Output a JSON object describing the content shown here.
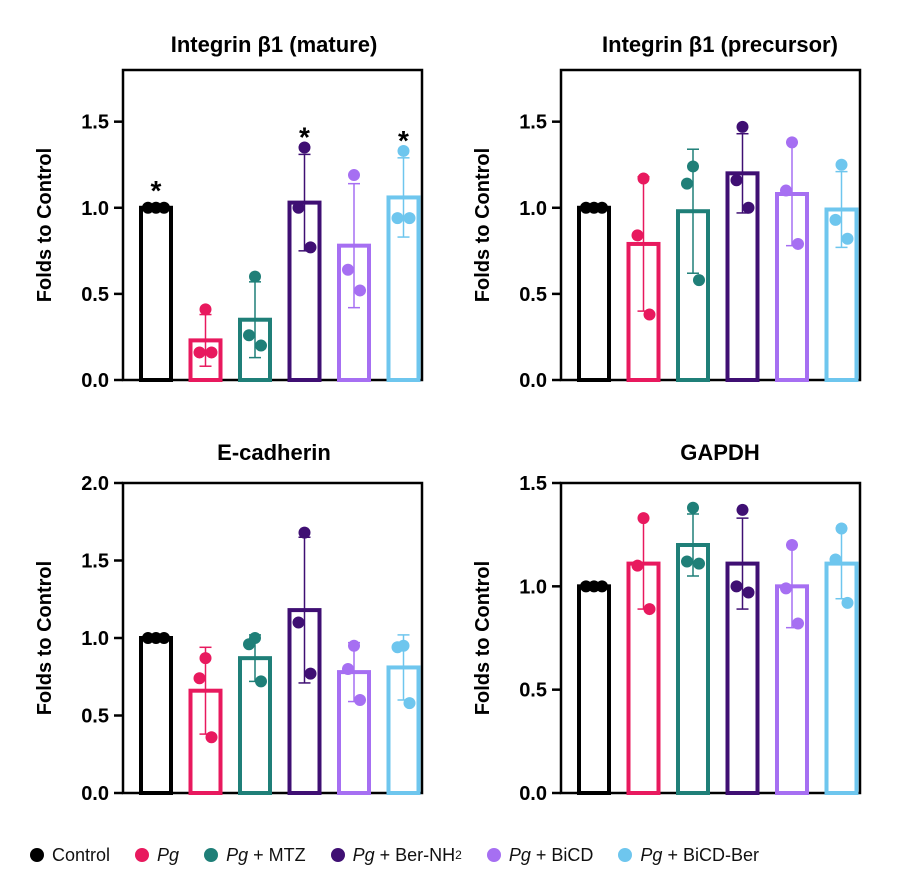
{
  "legend": [
    {
      "pg": "",
      "text": "Control",
      "sub": "",
      "color": "#000000"
    },
    {
      "pg": "Pg",
      "text": "",
      "sub": "",
      "color": "#e8195e"
    },
    {
      "pg": "Pg",
      "text": " + MTZ",
      "sub": "",
      "color": "#1f7f78"
    },
    {
      "pg": "Pg",
      "text": " + Ber-NH",
      "sub": "2",
      "color": "#3f0f73"
    },
    {
      "pg": "Pg",
      "text": " + BiCD",
      "sub": "",
      "color": "#a66ff2"
    },
    {
      "pg": "Pg",
      "text": " + BiCD-Ber",
      "sub": "",
      "color": "#6ec6ee"
    }
  ],
  "chart_data": [
    {
      "type": "bar",
      "title": "Integrin β1 (mature)",
      "ylabel": "Folds to Control",
      "ylim": [
        0,
        1.8
      ],
      "yticks": [
        0.0,
        0.5,
        1.0,
        1.5
      ],
      "ytick_labels": [
        "0.0",
        "0.5",
        "1.0",
        "1.5"
      ],
      "categories": [
        "Control",
        "Pg",
        "Pg + MTZ",
        "Pg + Ber-NH2",
        "Pg + BiCD",
        "Pg + BiCD-Ber"
      ],
      "values": [
        1.0,
        0.23,
        0.35,
        1.03,
        0.78,
        1.06
      ],
      "errors": [
        0.0,
        0.15,
        0.22,
        0.28,
        0.36,
        0.23
      ],
      "points": [
        [
          1.0,
          1.0,
          1.0
        ],
        [
          0.41,
          0.16,
          0.16
        ],
        [
          0.6,
          0.26,
          0.2
        ],
        [
          1.35,
          1.0,
          0.77
        ],
        [
          1.19,
          0.64,
          0.52
        ],
        [
          1.33,
          0.94,
          0.94
        ]
      ],
      "annotations": [
        "*",
        "",
        "",
        "*",
        "",
        "*"
      ]
    },
    {
      "type": "bar",
      "title": "Integrin β1 (precursor)",
      "ylabel": "Folds to Control",
      "ylim": [
        0,
        1.8
      ],
      "yticks": [
        0.0,
        0.5,
        1.0,
        1.5
      ],
      "ytick_labels": [
        "0.0",
        "0.5",
        "1.0",
        "1.5"
      ],
      "categories": [
        "Control",
        "Pg",
        "Pg + MTZ",
        "Pg + Ber-NH2",
        "Pg + BiCD",
        "Pg + BiCD-Ber"
      ],
      "values": [
        1.0,
        0.79,
        0.98,
        1.2,
        1.08,
        0.99
      ],
      "errors": [
        0.0,
        0.39,
        0.36,
        0.23,
        0.3,
        0.22
      ],
      "points": [
        [
          1.0,
          1.0,
          1.0
        ],
        [
          1.17,
          0.84,
          0.38
        ],
        [
          1.24,
          1.14,
          0.58
        ],
        [
          1.47,
          1.16,
          1.0
        ],
        [
          1.38,
          1.1,
          0.79
        ],
        [
          1.25,
          0.93,
          0.82
        ]
      ],
      "annotations": [
        "",
        "",
        "",
        "",
        "",
        ""
      ]
    },
    {
      "type": "bar",
      "title": "E-cadherin",
      "ylabel": "Folds to Control",
      "ylim": [
        0,
        2.0
      ],
      "yticks": [
        0.0,
        0.5,
        1.0,
        1.5,
        2.0
      ],
      "ytick_labels": [
        "0.0",
        "0.5",
        "1.0",
        "1.5",
        "2.0"
      ],
      "categories": [
        "Control",
        "Pg",
        "Pg + MTZ",
        "Pg + Ber-NH2",
        "Pg + BiCD",
        "Pg + BiCD-Ber"
      ],
      "values": [
        1.0,
        0.66,
        0.87,
        1.18,
        0.78,
        0.81
      ],
      "errors": [
        0.0,
        0.28,
        0.15,
        0.47,
        0.19,
        0.21
      ],
      "points": [
        [
          1.0,
          1.0,
          1.0
        ],
        [
          0.87,
          0.74,
          0.36
        ],
        [
          1.0,
          0.96,
          0.72
        ],
        [
          1.68,
          1.1,
          0.77
        ],
        [
          0.95,
          0.8,
          0.6
        ],
        [
          0.95,
          0.94,
          0.58
        ]
      ],
      "annotations": [
        "",
        "",
        "",
        "",
        "",
        ""
      ]
    },
    {
      "type": "bar",
      "title": "GAPDH",
      "ylabel": "Folds to Control",
      "ylim": [
        0,
        1.5
      ],
      "yticks": [
        0.0,
        0.5,
        1.0,
        1.5
      ],
      "ytick_labels": [
        "0.0",
        "0.5",
        "1.0",
        "1.5"
      ],
      "categories": [
        "Control",
        "Pg",
        "Pg + MTZ",
        "Pg + Ber-NH2",
        "Pg + BiCD",
        "Pg + BiCD-Ber"
      ],
      "values": [
        1.0,
        1.11,
        1.2,
        1.11,
        1.0,
        1.11
      ],
      "errors": [
        0.0,
        0.22,
        0.15,
        0.22,
        0.2,
        0.17
      ],
      "points": [
        [
          1.0,
          1.0,
          1.0
        ],
        [
          1.33,
          1.1,
          0.89
        ],
        [
          1.38,
          1.12,
          1.11
        ],
        [
          1.37,
          1.0,
          0.97
        ],
        [
          1.2,
          0.99,
          0.82
        ],
        [
          1.28,
          1.13,
          0.92
        ]
      ],
      "annotations": [
        "",
        "",
        "",
        "",
        "",
        ""
      ]
    }
  ],
  "colors": [
    "#000000",
    "#e8195e",
    "#1f7f78",
    "#3f0f73",
    "#a66ff2",
    "#6ec6ee"
  ]
}
